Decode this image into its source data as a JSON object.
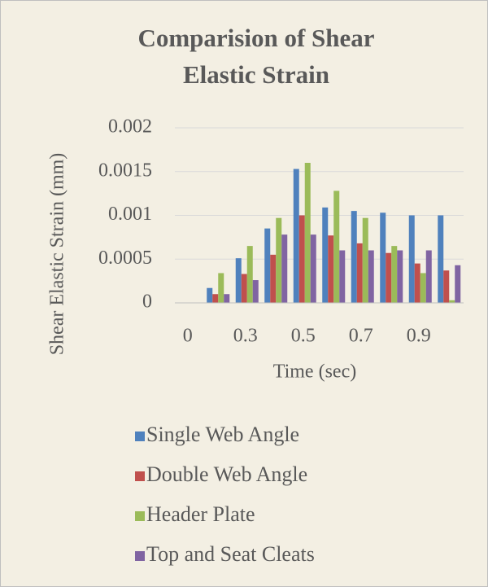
{
  "chart_data": {
    "type": "bar",
    "title": "Comparision of Shear Elastic Strain",
    "title_lines": [
      "Comparision of Shear",
      "Elastic Strain"
    ],
    "x_label": "Time (sec)",
    "y_label": "Shear Elastic Strain (mm)",
    "categories": [
      "0",
      null,
      "0.3",
      null,
      "0.5",
      null,
      "0.7",
      null,
      "0.9",
      null
    ],
    "series": [
      {
        "name": "Single Web Angle",
        "color": "#4f81bd",
        "values": [
          0,
          0.00017,
          0.00051,
          0.00085,
          0.00153,
          0.00109,
          0.00105,
          0.00103,
          0.001,
          0.001
        ]
      },
      {
        "name": "Double Web Angle",
        "color": "#c0504d",
        "values": [
          0,
          0.0001,
          0.00033,
          0.00055,
          0.001,
          0.00077,
          0.00068,
          0.00057,
          0.00045,
          0.00037
        ]
      },
      {
        "name": "Header Plate",
        "color": "#9bbb59",
        "values": [
          0,
          0.00034,
          0.00065,
          0.00097,
          0.0016,
          0.00128,
          0.00097,
          0.00065,
          0.00034,
          3e-05
        ]
      },
      {
        "name": "Top and Seat Cleats",
        "color": "#8064a2",
        "values": [
          0,
          0.0001,
          0.00026,
          0.00078,
          0.00078,
          0.0006,
          0.0006,
          0.0006,
          0.0006,
          0.00043
        ]
      }
    ],
    "ylim": [
      0,
      0.002
    ],
    "yticks": [
      0,
      0.0005,
      0.001,
      0.0015,
      0.002
    ],
    "grid": true,
    "legend": "bottom"
  }
}
